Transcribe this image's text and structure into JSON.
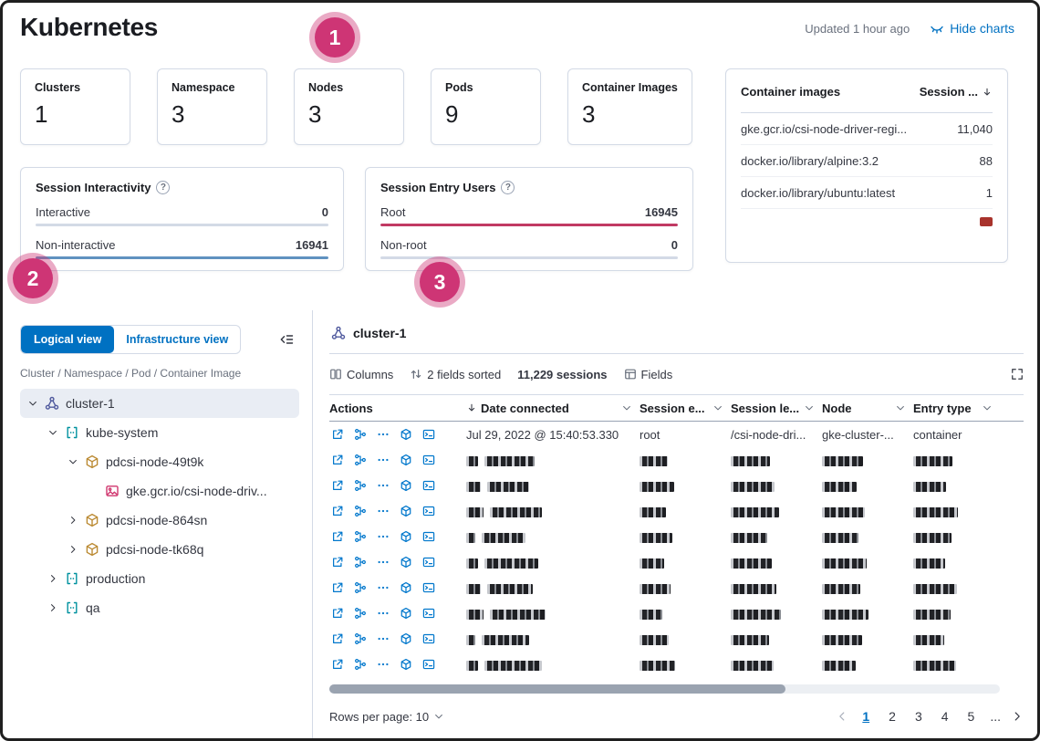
{
  "icons": {
    "help_glyph": "?",
    "hide_charts_icon": "eye-closed",
    "sort_desc_icon": "arrow-down",
    "collapse_icon": "menu-left"
  },
  "header": {
    "title": "Kubernetes",
    "updated": "Updated 1 hour ago",
    "hide_charts": "Hide charts"
  },
  "annotations": [
    {
      "label": "1"
    },
    {
      "label": "2"
    },
    {
      "label": "3"
    }
  ],
  "stats": [
    {
      "label": "Clusters",
      "value": "1"
    },
    {
      "label": "Namespace",
      "value": "3"
    },
    {
      "label": "Nodes",
      "value": "3"
    },
    {
      "label": "Pods",
      "value": "9"
    },
    {
      "label": "Container Images",
      "value": "3"
    }
  ],
  "container_images": {
    "title": "Container images",
    "sort_column": "Session ...",
    "rows": [
      {
        "name": "gke.gcr.io/csi-node-driver-regi...",
        "count": "11,040"
      },
      {
        "name": "docker.io/library/alpine:3.2",
        "count": "88"
      },
      {
        "name": "docker.io/library/ubuntu:latest",
        "count": "1"
      }
    ]
  },
  "session_interactivity": {
    "title": "Session Interactivity",
    "rows": [
      {
        "label": "Interactive",
        "value": "0",
        "pct": 0,
        "color": "#6092c0"
      },
      {
        "label": "Non-interactive",
        "value": "16941",
        "pct": 100,
        "color": "#6092c0"
      }
    ]
  },
  "session_entry_users": {
    "title": "Session Entry Users",
    "rows": [
      {
        "label": "Root",
        "value": "16945",
        "pct": 100,
        "color": "#c13a63"
      },
      {
        "label": "Non-root",
        "value": "0",
        "pct": 0,
        "color": "#c13a63"
      }
    ]
  },
  "tree_panel": {
    "logical_view": "Logical view",
    "infrastructure_view": "Infrastructure view",
    "breadcrumb": "Cluster / Namespace / Pod / Container Image",
    "items": [
      {
        "label": "cluster-1",
        "level": 0,
        "chevron": "down",
        "icon": "cluster",
        "selected": true
      },
      {
        "label": "kube-system",
        "level": 1,
        "chevron": "down",
        "icon": "namespace",
        "selected": false
      },
      {
        "label": "pdcsi-node-49t9k",
        "level": 2,
        "chevron": "down",
        "icon": "pod",
        "selected": false
      },
      {
        "label": "gke.gcr.io/csi-node-driv...",
        "level": 3,
        "chevron": "none",
        "icon": "image",
        "selected": false
      },
      {
        "label": "pdcsi-node-864sn",
        "level": 2,
        "chevron": "right",
        "icon": "pod",
        "selected": false
      },
      {
        "label": "pdcsi-node-tk68q",
        "level": 2,
        "chevron": "right",
        "icon": "pod",
        "selected": false
      },
      {
        "label": "production",
        "level": 1,
        "chevron": "right",
        "icon": "namespace",
        "selected": false
      },
      {
        "label": "qa",
        "level": 1,
        "chevron": "right",
        "icon": "namespace",
        "selected": false
      }
    ]
  },
  "session_table": {
    "title": "cluster-1",
    "toolbar": {
      "columns": "Columns",
      "fields_sorted": "2 fields sorted",
      "sessions": "11,229 sessions",
      "fields": "Fields"
    },
    "columns": [
      {
        "label": "Actions",
        "sortable": false,
        "sorted": false
      },
      {
        "label": "Date connected",
        "sortable": true,
        "sorted": true
      },
      {
        "label": "Session e...",
        "sortable": true,
        "sorted": false
      },
      {
        "label": "Session le...",
        "sortable": true,
        "sorted": false
      },
      {
        "label": "Node",
        "sortable": true,
        "sorted": false
      },
      {
        "label": "Entry type",
        "sortable": true,
        "sorted": false
      }
    ],
    "first_row": [
      "Jul 29, 2022 @ 15:40:53.330",
      "root",
      "/csi-node-dri...",
      "gke-cluster-...",
      "container"
    ],
    "redacted_rows": 9,
    "footer": {
      "rows_per_page": "Rows per page: 10",
      "pages": [
        "1",
        "2",
        "3",
        "4",
        "5"
      ],
      "current_page": "1",
      "ellipsis": "..."
    }
  }
}
